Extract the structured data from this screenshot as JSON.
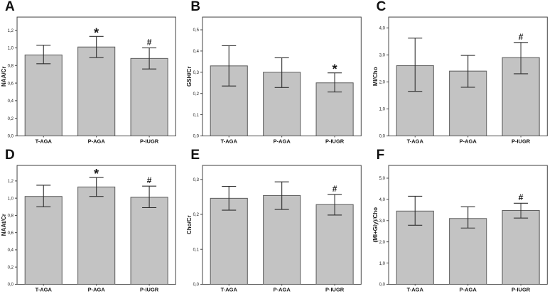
{
  "figure": {
    "background": "#ffffff",
    "bar_fill": "#c3c3c3",
    "bar_stroke": "#5a5a5a",
    "error_color": "#2f2f2f",
    "frame_color": "#454545",
    "text_color": "#1a1a1a",
    "categories": [
      "T-AGA",
      "P-AGA",
      "P-IUGR"
    ]
  },
  "chart_data": [
    {
      "type": "bar",
      "panel_label": "A",
      "ylabel": "NAA/Cr",
      "categories": [
        "T-AGA",
        "P-AGA",
        "P-IUGR"
      ],
      "values": [
        0.92,
        1.01,
        0.88
      ],
      "error_low": [
        0.82,
        0.89,
        0.76
      ],
      "error_high": [
        1.03,
        1.13,
        1.0
      ],
      "annotations": [
        "",
        "*",
        "#"
      ],
      "ylim": [
        0,
        1.35
      ],
      "yticks": [
        {
          "value": 0.0,
          "label": "0,0"
        },
        {
          "value": 0.2,
          "label": "0,2"
        },
        {
          "value": 0.4,
          "label": "0,4"
        },
        {
          "value": 0.6,
          "label": "0,6"
        },
        {
          "value": 0.8,
          "label": "0,8"
        },
        {
          "value": 1.0,
          "label": "1,0"
        },
        {
          "value": 1.2,
          "label": "1,2"
        }
      ]
    },
    {
      "type": "bar",
      "panel_label": "B",
      "ylabel": "GSH/Cr",
      "categories": [
        "T-AGA",
        "P-AGA",
        "P-IUGR"
      ],
      "values": [
        0.33,
        0.3,
        0.25
      ],
      "error_low": [
        0.235,
        0.228,
        0.207
      ],
      "error_high": [
        0.425,
        0.368,
        0.297
      ],
      "annotations": [
        "",
        "",
        "*"
      ],
      "ylim": [
        0,
        0.56
      ],
      "yticks": [
        {
          "value": 0.0,
          "label": "0,0"
        },
        {
          "value": 0.1,
          "label": "0,1"
        },
        {
          "value": 0.2,
          "label": "0,2"
        },
        {
          "value": 0.3,
          "label": "0,3"
        },
        {
          "value": 0.4,
          "label": "0,4"
        },
        {
          "value": 0.5,
          "label": "0,5"
        }
      ]
    },
    {
      "type": "bar",
      "panel_label": "C",
      "ylabel": "MI/Cho",
      "categories": [
        "T-AGA",
        "P-AGA",
        "P-IUGR"
      ],
      "values": [
        2.6,
        2.4,
        2.9
      ],
      "error_low": [
        1.65,
        1.8,
        2.3
      ],
      "error_high": [
        3.62,
        2.98,
        3.46
      ],
      "annotations": [
        "",
        "",
        "#"
      ],
      "ylim": [
        0,
        4.4
      ],
      "yticks": [
        {
          "value": 0.0,
          "label": "0,0"
        },
        {
          "value": 1.0,
          "label": "1,0"
        },
        {
          "value": 2.0,
          "label": "2,0"
        },
        {
          "value": 3.0,
          "label": "3,0"
        },
        {
          "value": 4.0,
          "label": "4,0"
        }
      ]
    },
    {
      "type": "bar",
      "panel_label": "D",
      "ylabel": "NAAt/Cr",
      "categories": [
        "T-AGA",
        "P-AGA",
        "P-IUGR"
      ],
      "values": [
        1.02,
        1.13,
        1.01
      ],
      "error_low": [
        0.9,
        1.02,
        0.89
      ],
      "error_high": [
        1.15,
        1.24,
        1.14
      ],
      "annotations": [
        "",
        "*",
        "#"
      ],
      "ylim": [
        0,
        1.38
      ],
      "yticks": [
        {
          "value": 0.0,
          "label": "0,0"
        },
        {
          "value": 0.2,
          "label": "0,2"
        },
        {
          "value": 0.4,
          "label": "0,4"
        },
        {
          "value": 0.6,
          "label": "0,6"
        },
        {
          "value": 0.8,
          "label": "0,8"
        },
        {
          "value": 1.0,
          "label": "1,0"
        },
        {
          "value": 1.2,
          "label": "1,2"
        }
      ]
    },
    {
      "type": "bar",
      "panel_label": "E",
      "ylabel": "Cho/Cr",
      "categories": [
        "T-AGA",
        "P-AGA",
        "P-IUGR"
      ],
      "values": [
        0.246,
        0.254,
        0.228
      ],
      "error_low": [
        0.212,
        0.214,
        0.198
      ],
      "error_high": [
        0.28,
        0.293,
        0.257
      ],
      "annotations": [
        "",
        "",
        "#"
      ],
      "ylim": [
        0,
        0.34
      ],
      "yticks": [
        {
          "value": 0.0,
          "label": "0,0"
        },
        {
          "value": 0.1,
          "label": "0,1"
        },
        {
          "value": 0.2,
          "label": "0,2"
        },
        {
          "value": 0.3,
          "label": "0,3"
        }
      ]
    },
    {
      "type": "bar",
      "panel_label": "F",
      "ylabel": "(MI+Gly)/Cho",
      "categories": [
        "T-AGA",
        "P-AGA",
        "P-IUGR"
      ],
      "values": [
        3.45,
        3.1,
        3.48
      ],
      "error_low": [
        2.78,
        2.65,
        3.12
      ],
      "error_high": [
        4.15,
        3.65,
        3.82
      ],
      "annotations": [
        "",
        "",
        "#"
      ],
      "ylim": [
        0,
        5.6
      ],
      "yticks": [
        {
          "value": 0.0,
          "label": "0,0"
        },
        {
          "value": 1.0,
          "label": "1,0"
        },
        {
          "value": 2.0,
          "label": "2,0"
        },
        {
          "value": 3.0,
          "label": "3,0"
        },
        {
          "value": 4.0,
          "label": "4,0"
        },
        {
          "value": 5.0,
          "label": "5,0"
        }
      ]
    }
  ]
}
